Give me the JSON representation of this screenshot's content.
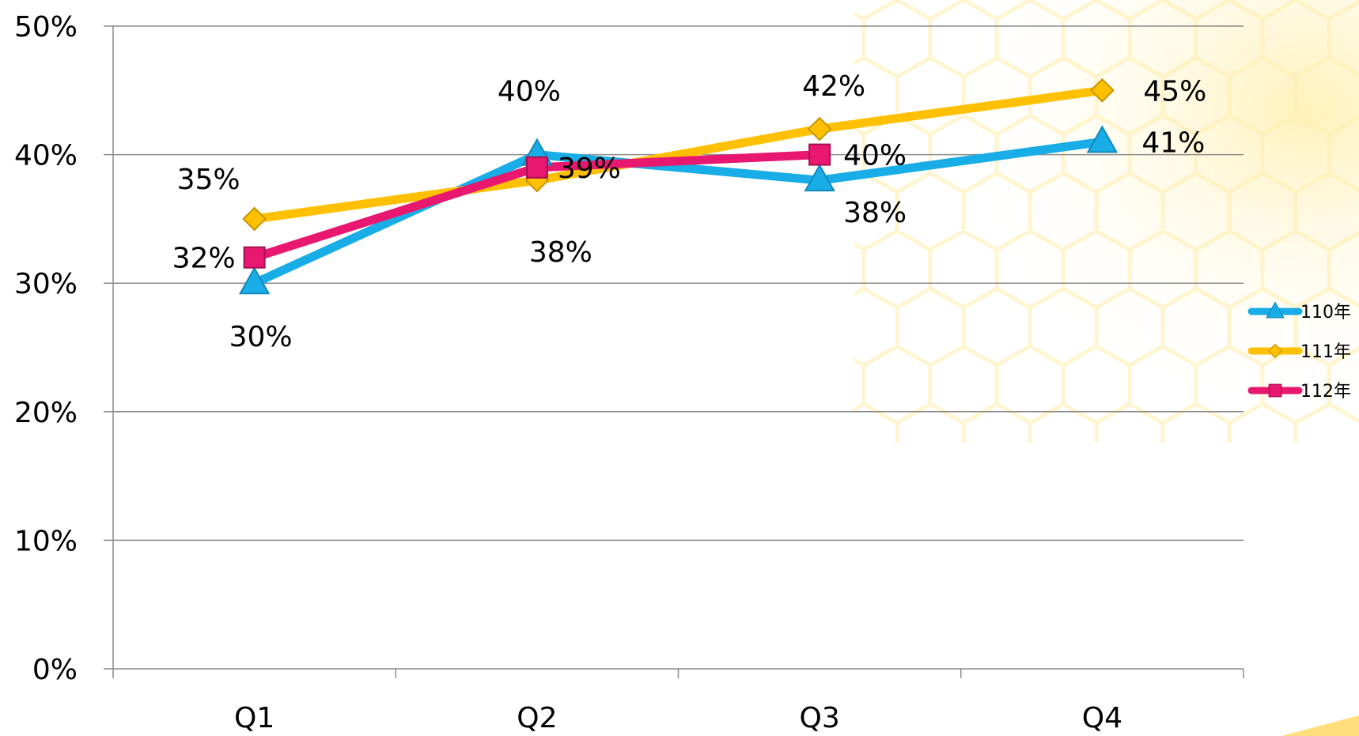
{
  "chart_data": {
    "type": "line",
    "categories": [
      "Q1",
      "Q2",
      "Q3",
      "Q4"
    ],
    "ylim": [
      0,
      0.5
    ],
    "y_ticks": [
      "0%",
      "10%",
      "20%",
      "30%",
      "40%",
      "50%"
    ],
    "grid": true,
    "legend_position": "right",
    "series": [
      {
        "name": "110年",
        "color": "#18ADE6",
        "marker": "triangle",
        "values": [
          0.3,
          0.4,
          0.38,
          0.41
        ],
        "labels": [
          "30%",
          "40%",
          "38%",
          "41%"
        ]
      },
      {
        "name": "111年",
        "color": "#FFC000",
        "marker": "diamond",
        "values": [
          0.35,
          0.38,
          0.42,
          0.45
        ],
        "labels": [
          "35%",
          "38%",
          "42%",
          "45%"
        ]
      },
      {
        "name": "112年",
        "color": "#E8176F",
        "marker": "square",
        "values": [
          0.32,
          0.39,
          0.4,
          null
        ],
        "labels": [
          "32%",
          "39%",
          "40%",
          null
        ]
      }
    ]
  }
}
